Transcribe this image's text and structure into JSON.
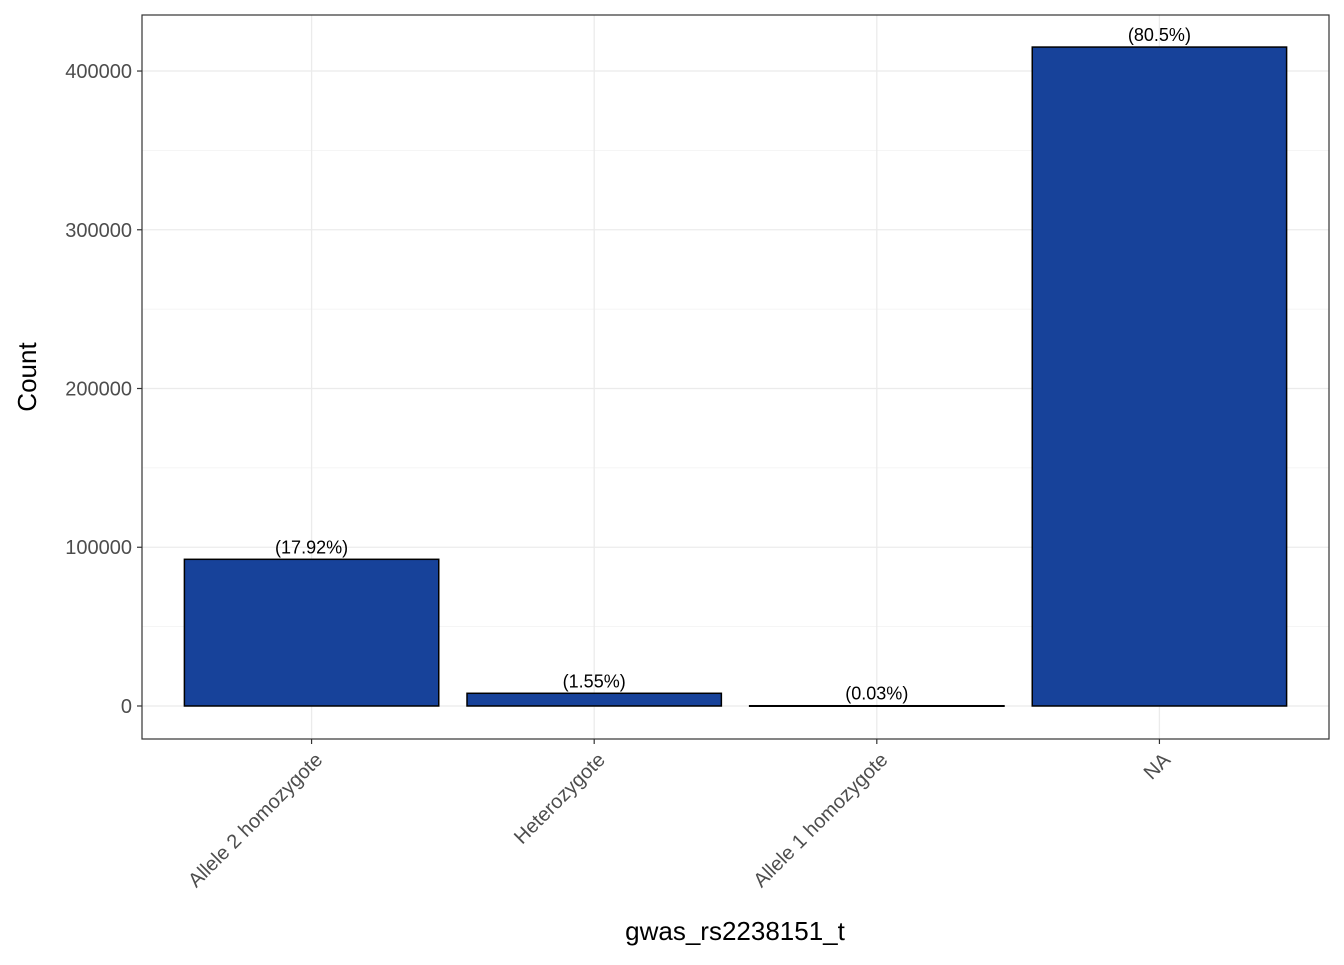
{
  "chart_data": {
    "type": "bar",
    "title": "",
    "xlabel": "gwas_rs2238151_t",
    "ylabel": "Count",
    "categories": [
      "Allele 2 homozygote",
      "Heterozygote",
      "Allele 1 homozygote",
      "NA"
    ],
    "values": [
      92400,
      8000,
      155,
      415100
    ],
    "labels": [
      "(17.92%)",
      "(1.55%)",
      "(0.03%)",
      "(80.5%)"
    ],
    "yticks": [
      0,
      100000,
      200000,
      300000,
      400000
    ],
    "ytick_labels": [
      "0",
      "100000",
      "200000",
      "300000",
      "400000"
    ],
    "ylim": [
      -20800,
      435300
    ],
    "grid": true,
    "bar_color": "#17429A"
  }
}
